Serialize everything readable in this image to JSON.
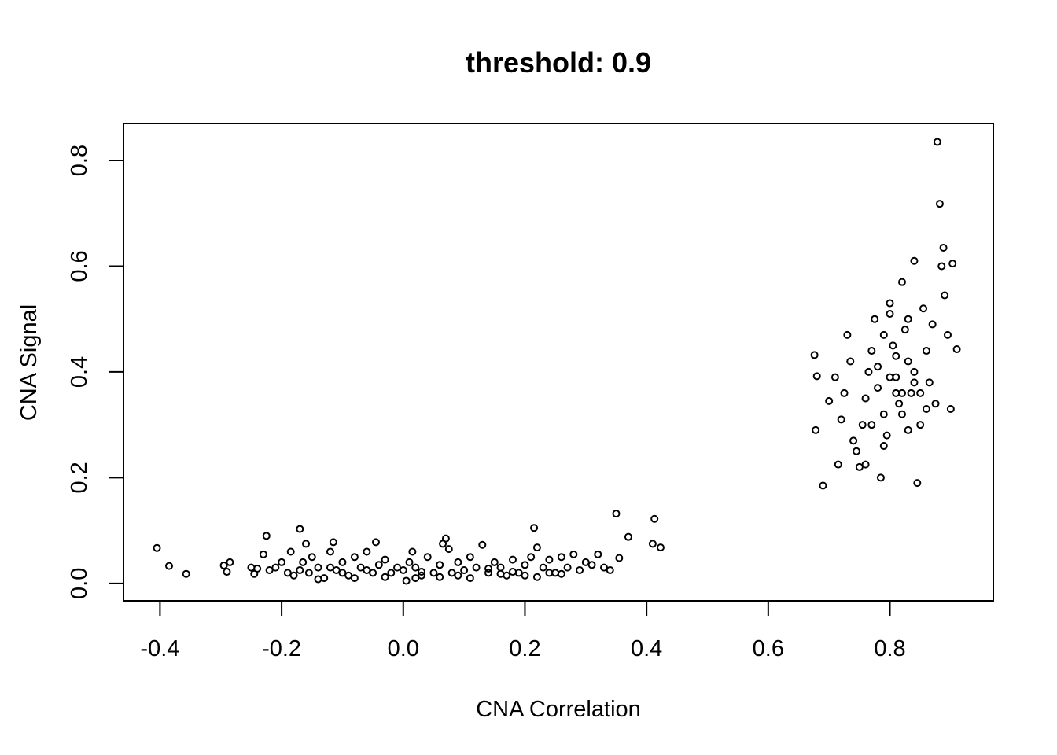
{
  "chart_data": {
    "type": "scatter",
    "title": "threshold: 0.9",
    "xlabel": "CNA Correlation",
    "ylabel": "CNA Signal",
    "xlim": [
      -0.46,
      0.97
    ],
    "ylim": [
      -0.033,
      0.87
    ],
    "xticks": [
      -0.4,
      -0.2,
      0.0,
      0.2,
      0.4,
      0.6,
      0.8
    ],
    "xtick_labels": [
      "-0.4",
      "-0.2",
      "0.0",
      "0.2",
      "0.4",
      "0.6",
      "0.8"
    ],
    "yticks": [
      0.0,
      0.2,
      0.4,
      0.6,
      0.8
    ],
    "ytick_labels": [
      "0.0",
      "0.2",
      "0.4",
      "0.6",
      "0.8"
    ],
    "grid": false,
    "marker": "open-circle",
    "series": [
      {
        "points": [
          [
            -0.405,
            0.067
          ],
          [
            -0.385,
            0.033
          ],
          [
            -0.357,
            0.018
          ],
          [
            -0.295,
            0.034
          ],
          [
            -0.29,
            0.022
          ],
          [
            -0.285,
            0.04
          ],
          [
            -0.25,
            0.03
          ],
          [
            -0.245,
            0.018
          ],
          [
            -0.24,
            0.028
          ],
          [
            -0.23,
            0.055
          ],
          [
            -0.225,
            0.09
          ],
          [
            -0.22,
            0.025
          ],
          [
            -0.21,
            0.03
          ],
          [
            -0.2,
            0.04
          ],
          [
            -0.19,
            0.02
          ],
          [
            -0.185,
            0.06
          ],
          [
            -0.17,
            0.103
          ],
          [
            -0.165,
            0.04
          ],
          [
            -0.16,
            0.075
          ],
          [
            -0.155,
            0.02
          ],
          [
            -0.15,
            0.05
          ],
          [
            -0.14,
            0.03
          ],
          [
            -0.13,
            0.01
          ],
          [
            -0.12,
            0.06
          ],
          [
            -0.115,
            0.078
          ],
          [
            -0.11,
            0.025
          ],
          [
            -0.1,
            0.04
          ],
          [
            -0.09,
            0.015
          ],
          [
            -0.08,
            0.05
          ],
          [
            -0.07,
            0.03
          ],
          [
            -0.06,
            0.06
          ],
          [
            -0.05,
            0.02
          ],
          [
            -0.045,
            0.078
          ],
          [
            -0.04,
            0.035
          ],
          [
            -0.03,
            0.045
          ],
          [
            -0.02,
            0.02
          ],
          [
            -0.01,
            0.03
          ],
          [
            0.0,
            0.025
          ],
          [
            0.005,
            0.005
          ],
          [
            0.01,
            0.04
          ],
          [
            0.015,
            0.06
          ],
          [
            0.02,
            0.03
          ],
          [
            0.03,
            0.015
          ],
          [
            0.04,
            0.05
          ],
          [
            0.05,
            0.02
          ],
          [
            0.06,
            0.035
          ],
          [
            0.065,
            0.075
          ],
          [
            0.07,
            0.085
          ],
          [
            0.075,
            0.065
          ],
          [
            0.08,
            0.02
          ],
          [
            0.09,
            0.04
          ],
          [
            0.1,
            0.025
          ],
          [
            0.11,
            0.05
          ],
          [
            0.12,
            0.03
          ],
          [
            0.13,
            0.073
          ],
          [
            0.14,
            0.02
          ],
          [
            0.15,
            0.04
          ],
          [
            0.16,
            0.03
          ],
          [
            0.17,
            0.015
          ],
          [
            0.18,
            0.045
          ],
          [
            0.19,
            0.02
          ],
          [
            0.2,
            0.035
          ],
          [
            0.21,
            0.05
          ],
          [
            0.215,
            0.105
          ],
          [
            0.22,
            0.068
          ],
          [
            0.23,
            0.03
          ],
          [
            0.24,
            0.045
          ],
          [
            0.25,
            0.02
          ],
          [
            0.26,
            0.05
          ],
          [
            0.27,
            0.03
          ],
          [
            0.28,
            0.055
          ],
          [
            0.29,
            0.025
          ],
          [
            0.3,
            0.04
          ],
          [
            0.31,
            0.035
          ],
          [
            0.32,
            0.055
          ],
          [
            0.33,
            0.03
          ],
          [
            0.34,
            0.025
          ],
          [
            0.35,
            0.132
          ],
          [
            0.355,
            0.048
          ],
          [
            0.37,
            0.088
          ],
          [
            0.41,
            0.075
          ],
          [
            0.413,
            0.122
          ],
          [
            0.423,
            0.068
          ],
          [
            -0.18,
            0.015
          ],
          [
            -0.14,
            0.008
          ],
          [
            -0.08,
            0.01
          ],
          [
            -0.03,
            0.012
          ],
          [
            0.02,
            0.01
          ],
          [
            0.06,
            0.012
          ],
          [
            0.11,
            0.01
          ],
          [
            0.16,
            0.018
          ],
          [
            0.2,
            0.015
          ],
          [
            0.24,
            0.02
          ],
          [
            -0.17,
            0.025
          ],
          [
            -0.12,
            0.03
          ],
          [
            -0.06,
            0.025
          ],
          [
            0.03,
            0.022
          ],
          [
            0.09,
            0.015
          ],
          [
            0.14,
            0.028
          ],
          [
            0.18,
            0.022
          ],
          [
            0.22,
            0.012
          ],
          [
            0.26,
            0.018
          ],
          [
            -0.1,
            0.02
          ],
          [
            0.676,
            0.432
          ],
          [
            0.68,
            0.392
          ],
          [
            0.678,
            0.29
          ],
          [
            0.69,
            0.185
          ],
          [
            0.7,
            0.345
          ],
          [
            0.71,
            0.39
          ],
          [
            0.715,
            0.225
          ],
          [
            0.72,
            0.31
          ],
          [
            0.725,
            0.36
          ],
          [
            0.73,
            0.47
          ],
          [
            0.735,
            0.42
          ],
          [
            0.74,
            0.27
          ],
          [
            0.745,
            0.25
          ],
          [
            0.75,
            0.22
          ],
          [
            0.755,
            0.3
          ],
          [
            0.76,
            0.35
          ],
          [
            0.765,
            0.4
          ],
          [
            0.77,
            0.44
          ],
          [
            0.775,
            0.5
          ],
          [
            0.78,
            0.37
          ],
          [
            0.785,
            0.2
          ],
          [
            0.79,
            0.32
          ],
          [
            0.795,
            0.28
          ],
          [
            0.8,
            0.53
          ],
          [
            0.805,
            0.45
          ],
          [
            0.81,
            0.39
          ],
          [
            0.815,
            0.34
          ],
          [
            0.82,
            0.57
          ],
          [
            0.825,
            0.48
          ],
          [
            0.83,
            0.42
          ],
          [
            0.835,
            0.36
          ],
          [
            0.84,
            0.61
          ],
          [
            0.845,
            0.19
          ],
          [
            0.85,
            0.3
          ],
          [
            0.855,
            0.52
          ],
          [
            0.86,
            0.44
          ],
          [
            0.865,
            0.38
          ],
          [
            0.87,
            0.49
          ],
          [
            0.875,
            0.34
          ],
          [
            0.878,
            0.835
          ],
          [
            0.882,
            0.718
          ],
          [
            0.885,
            0.6
          ],
          [
            0.888,
            0.635
          ],
          [
            0.89,
            0.545
          ],
          [
            0.895,
            0.47
          ],
          [
            0.9,
            0.33
          ],
          [
            0.903,
            0.605
          ],
          [
            0.91,
            0.443
          ],
          [
            0.76,
            0.225
          ],
          [
            0.77,
            0.3
          ],
          [
            0.78,
            0.41
          ],
          [
            0.79,
            0.26
          ],
          [
            0.8,
            0.39
          ],
          [
            0.81,
            0.36
          ],
          [
            0.82,
            0.32
          ],
          [
            0.83,
            0.29
          ],
          [
            0.84,
            0.4
          ],
          [
            0.85,
            0.36
          ],
          [
            0.86,
            0.33
          ],
          [
            0.79,
            0.47
          ],
          [
            0.8,
            0.51
          ],
          [
            0.81,
            0.43
          ],
          [
            0.82,
            0.36
          ],
          [
            0.83,
            0.5
          ],
          [
            0.84,
            0.38
          ]
        ]
      }
    ]
  }
}
